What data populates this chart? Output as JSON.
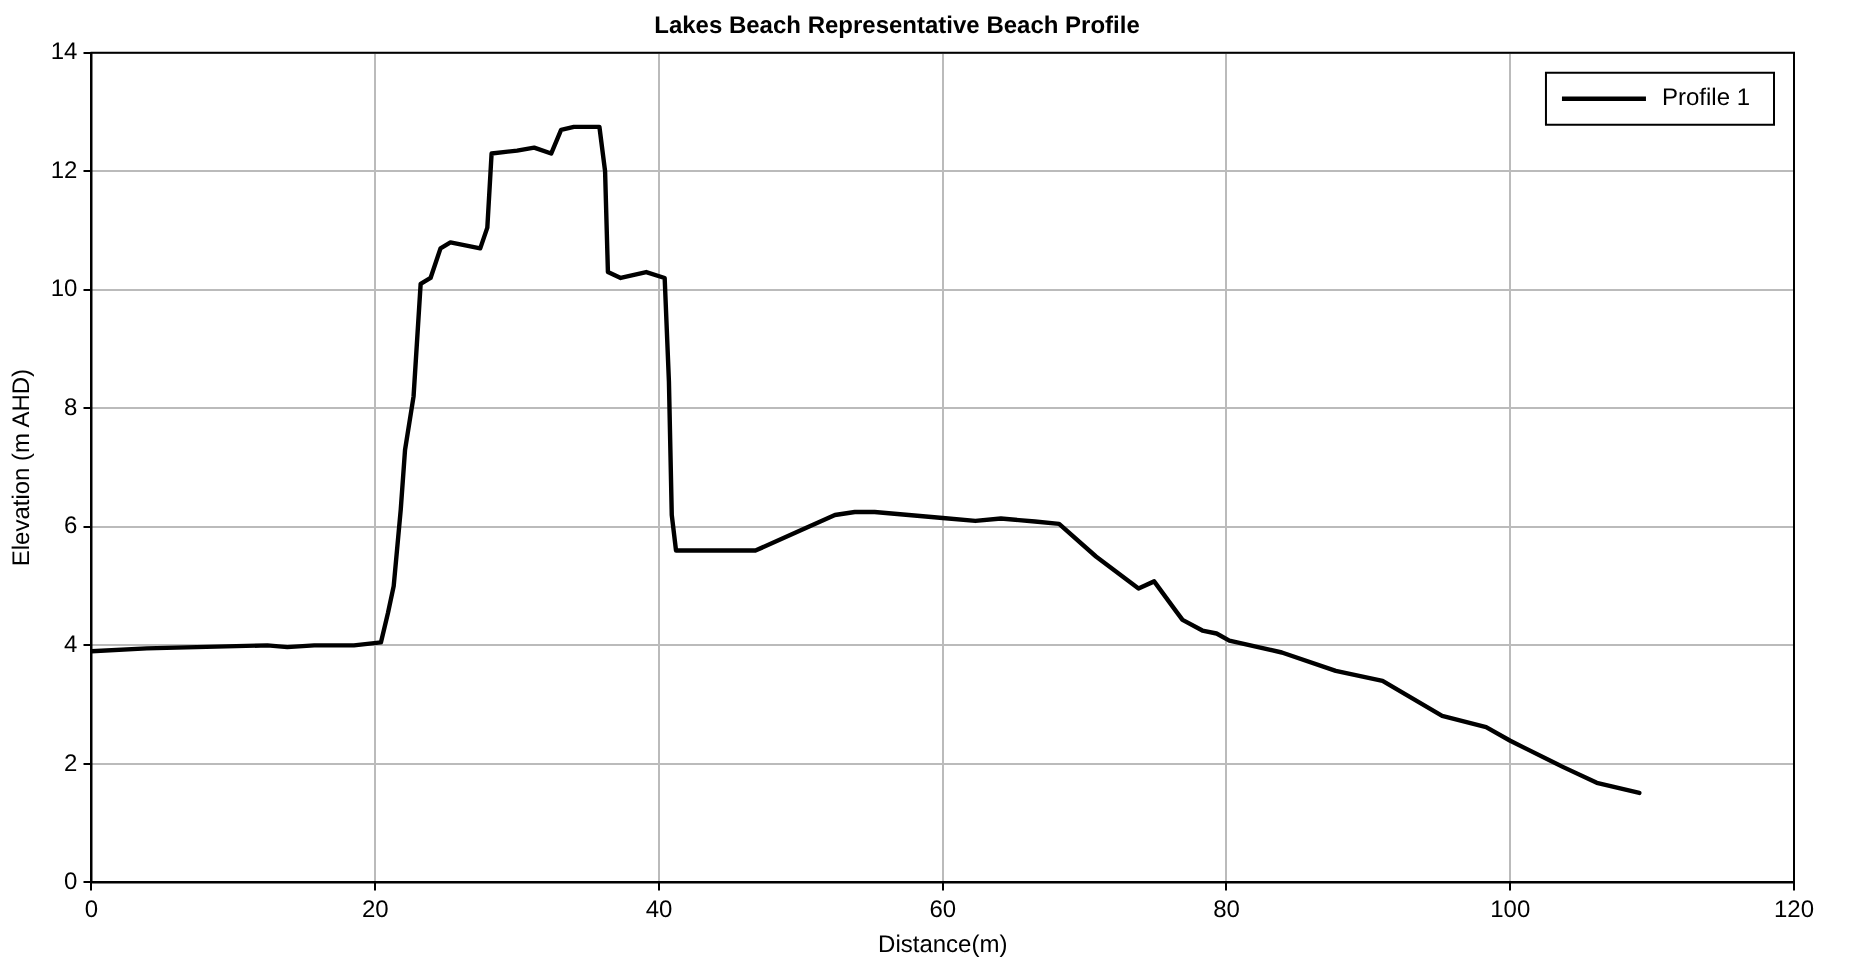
{
  "chart_data": {
    "type": "line",
    "title": "Lakes Beach Representative Beach Profile",
    "xlabel": "Distance(m)",
    "ylabel": "Elevation (m AHD)",
    "xlim": [
      0,
      120
    ],
    "xticks": [
      0,
      20,
      40,
      60,
      80,
      100,
      120
    ],
    "ylim": [
      0,
      14
    ],
    "yticks": [
      0,
      2,
      4,
      6,
      8,
      10,
      12,
      14
    ],
    "grid": true,
    "legend": "top right",
    "marker": "none",
    "line_style": "solid",
    "series": [
      {
        "name": "Profile 1",
        "color": "#000000",
        "x": [
          0,
          3.9,
          12.4,
          13.8,
          15.7,
          18.5,
          20.4,
          20.9,
          21.3,
          21.8,
          22.1,
          22.7,
          23.2,
          23.9,
          24.6,
          25.3,
          27.4,
          27.9,
          28.2,
          30.0,
          31.2,
          32.4,
          33.1,
          34.0,
          35.8,
          36.2,
          36.4,
          37.3,
          39.1,
          40.4,
          40.7,
          40.9,
          41.2,
          46.8,
          49.6,
          52.4,
          53.8,
          55.2,
          57.6,
          60,
          62.3,
          64.1,
          66.5,
          68.2,
          70.8,
          73.8,
          74.9,
          76.4,
          76.9,
          78.3,
          79.3,
          80.2,
          83.9,
          87.7,
          91.0,
          95.2,
          98.3,
          100.0,
          103.7,
          106.1,
          109.1
        ],
        "values": [
          3.9,
          3.95,
          4.0,
          3.97,
          4.0,
          4.0,
          4.05,
          4.55,
          5.0,
          6.3,
          7.3,
          8.2,
          10.1,
          10.2,
          10.7,
          10.8,
          10.7,
          11.05,
          12.3,
          12.35,
          12.4,
          12.3,
          12.7,
          12.75,
          12.75,
          12.0,
          10.3,
          10.2,
          10.3,
          10.2,
          8.45,
          6.2,
          5.6,
          5.6,
          5.9,
          6.2,
          6.25,
          6.25,
          6.2,
          6.15,
          6.1,
          6.14,
          6.09,
          6.05,
          5.5,
          4.96,
          5.08,
          4.59,
          4.43,
          4.25,
          4.2,
          4.08,
          3.88,
          3.57,
          3.4,
          2.81,
          2.62,
          2.39,
          1.95,
          1.68,
          1.51
        ]
      }
    ]
  }
}
